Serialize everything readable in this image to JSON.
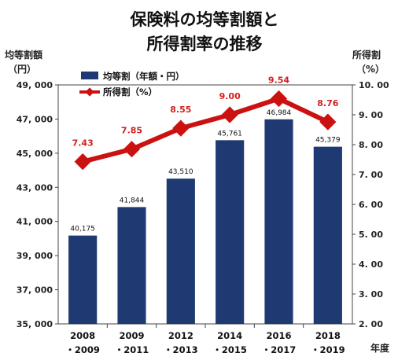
{
  "chart_data": {
    "type": "bar+line",
    "title_lines": [
      "保険料の均等割額と",
      "所得割率の推移"
    ],
    "y_left": {
      "label_lines": [
        "均等割額",
        "（円）"
      ],
      "range": [
        35000,
        49000
      ],
      "ticks": [
        35000,
        37000,
        39000,
        41000,
        43000,
        45000,
        47000,
        49000
      ],
      "tick_labels": [
        "35, 000",
        "37, 000",
        "39, 000",
        "41, 000",
        "43, 000",
        "45, 000",
        "47, 000",
        "49, 000"
      ]
    },
    "y_right": {
      "label_lines": [
        "所得割",
        "（%）"
      ],
      "range": [
        2.0,
        10.0
      ],
      "ticks": [
        2,
        3,
        4,
        5,
        6,
        7,
        8,
        9,
        10
      ],
      "tick_labels": [
        "2. 00",
        "3. 00",
        "4. 00",
        "5. 00",
        "6. 00",
        "7. 00",
        "8. 00",
        "9. 00",
        "10. 00"
      ]
    },
    "x_axis_label": "年度",
    "categories": [
      [
        "2008",
        "・2009"
      ],
      [
        "2009",
        "・2011"
      ],
      [
        "2012",
        "・2013"
      ],
      [
        "2014",
        "・2015"
      ],
      [
        "2016",
        "・2017"
      ],
      [
        "2018",
        "・2019"
      ]
    ],
    "series": [
      {
        "name": "均等割（年額・円）",
        "kind": "bar",
        "axis": "left",
        "color": "#1f3a73",
        "values": [
          40175,
          41844,
          43510,
          45761,
          46984,
          45379
        ],
        "labels": [
          "40,175",
          "41,844",
          "43,510",
          "45,761",
          "46,984",
          "45,379"
        ]
      },
      {
        "name": "所得割（%）",
        "kind": "line",
        "axis": "right",
        "color": "#cc1111",
        "values": [
          7.43,
          7.85,
          8.55,
          9.0,
          9.54,
          8.76
        ],
        "labels": [
          "7.43",
          "7.85",
          "8.55",
          "9.00",
          "9.54",
          "8.76"
        ]
      }
    ],
    "legend_position": "top-left",
    "grid": false
  }
}
